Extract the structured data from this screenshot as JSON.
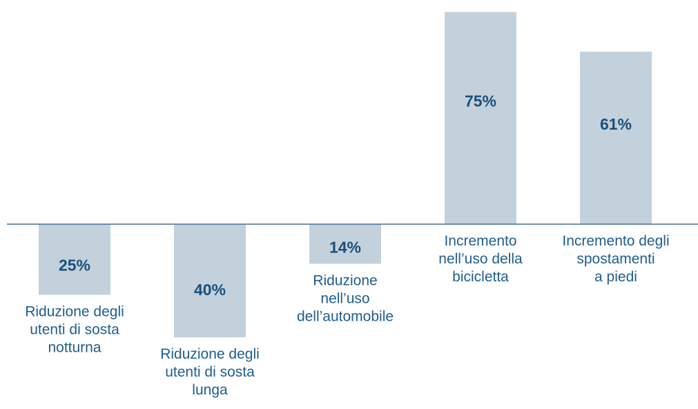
{
  "chart_data": {
    "type": "bar",
    "categories": [
      [
        "Riduzione degli",
        "utenti di sosta",
        "notturna"
      ],
      [
        "Riduzione degli",
        "utenti di sosta",
        "lunga"
      ],
      [
        "Riduzione",
        "nell’uso",
        "dell’automobile"
      ],
      [
        "Incremento",
        "nell’uso della",
        "bicicletta"
      ],
      [
        "Incremento degli",
        "spostamenti",
        "a piedi"
      ]
    ],
    "values": [
      -25,
      -40,
      -14,
      75,
      61
    ],
    "value_labels": [
      "25%",
      "40%",
      "14%",
      "75%",
      "61%"
    ],
    "ylim": [
      -42,
      76
    ],
    "grid": false,
    "colors": {
      "bar": "#c3d1dc",
      "value_label": "#1a4f7a",
      "category_label": "#1f5d8c",
      "axis": "#4b6f8f"
    }
  }
}
